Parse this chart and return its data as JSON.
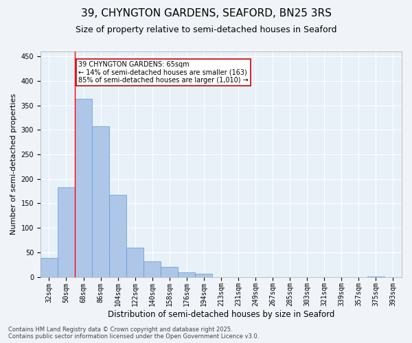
{
  "title": "39, CHYNGTON GARDENS, SEAFORD, BN25 3RS",
  "subtitle": "Size of property relative to semi-detached houses in Seaford",
  "xlabel": "Distribution of semi-detached houses by size in Seaford",
  "ylabel": "Number of semi-detached properties",
  "categories": [
    "32sqm",
    "50sqm",
    "68sqm",
    "86sqm",
    "104sqm",
    "122sqm",
    "140sqm",
    "158sqm",
    "176sqm",
    "194sqm",
    "213sqm",
    "231sqm",
    "249sqm",
    "267sqm",
    "285sqm",
    "303sqm",
    "321sqm",
    "339sqm",
    "357sqm",
    "375sqm",
    "393sqm"
  ],
  "values": [
    38,
    183,
    363,
    307,
    167,
    60,
    32,
    20,
    9,
    6,
    0,
    0,
    0,
    0,
    0,
    0,
    0,
    0,
    0,
    1,
    0
  ],
  "bar_color": "#aec6e8",
  "bar_edgecolor": "#5b9bd5",
  "annotation_title": "39 CHYNGTON GARDENS: 65sqm",
  "annotation_line1": "← 14% of semi-detached houses are smaller (163)",
  "annotation_line2": "85% of semi-detached houses are larger (1,010) →",
  "annotation_box_color": "#ffffff",
  "annotation_box_edgecolor": "#cc0000",
  "ylim": [
    0,
    460
  ],
  "yticks": [
    0,
    50,
    100,
    150,
    200,
    250,
    300,
    350,
    400,
    450
  ],
  "background_color": "#e8f0f8",
  "grid_color": "#ffffff",
  "footer_line1": "Contains HM Land Registry data © Crown copyright and database right 2025.",
  "footer_line2": "Contains public sector information licensed under the Open Government Licence v3.0.",
  "title_fontsize": 11,
  "subtitle_fontsize": 9,
  "xlabel_fontsize": 8.5,
  "ylabel_fontsize": 8,
  "tick_fontsize": 7,
  "annotation_fontsize": 7,
  "footer_fontsize": 6
}
